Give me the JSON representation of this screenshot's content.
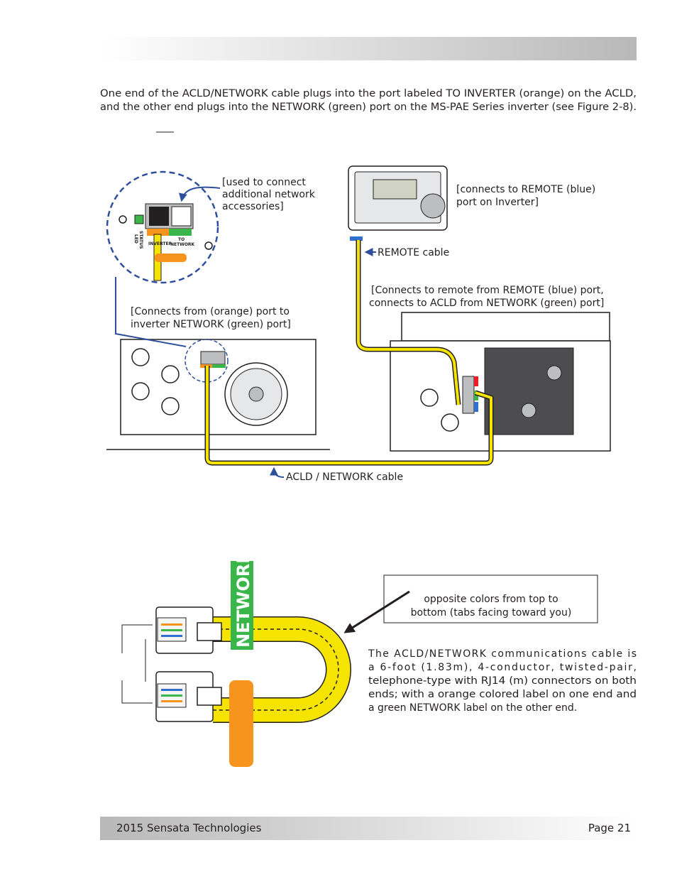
{
  "intro": {
    "lines": [
      "One end of the ACLD/NETWORK cable plugs into the port labeled TO INVERTER (orange) on the ACLD,",
      "and the other end plugs into the NETWORK (green) port on the MS-PAE Series inverter (see Figure 2-8)."
    ]
  },
  "figure_top": {
    "callout_accessories": [
      "[used to connect",
      "additional network",
      "accessories]"
    ],
    "port_labels": {
      "status": "STATUS",
      "led": "LED",
      "inverter": "INVERTER",
      "to": "TO",
      "network": "NETWORK"
    },
    "callout_remote_port": [
      "[connects to REMOTE (blue)",
      "port on Inverter]"
    ],
    "remote_cable": "REMOTE cable",
    "callout_remote_cable": [
      "[Connects to remote from REMOTE (blue) port,",
      "connects to ACLD from NETWORK (green) port]"
    ],
    "callout_acld": [
      "[Connects from (orange) port to",
      "inverter NETWORK (green) port]"
    ],
    "acld_network_cable": "ACLD / NETWORK cable"
  },
  "figure_bottom": {
    "cable_label": "NETWORK",
    "note": [
      "opposite colors from top to",
      "bottom (tabs facing toward you)"
    ],
    "description": [
      "The ACLD/NETWORK communications cable is",
      "a 6-foot (1.83m), 4-conductor, twisted-pair,",
      "telephone-type with RJ14 (m) connectors on both",
      "ends; with a orange colored label on one end and",
      "a green NETWORK label on the other end."
    ]
  },
  "footer": {
    "copyright": "2015 Sensata Technologies",
    "page": "Page 21"
  }
}
